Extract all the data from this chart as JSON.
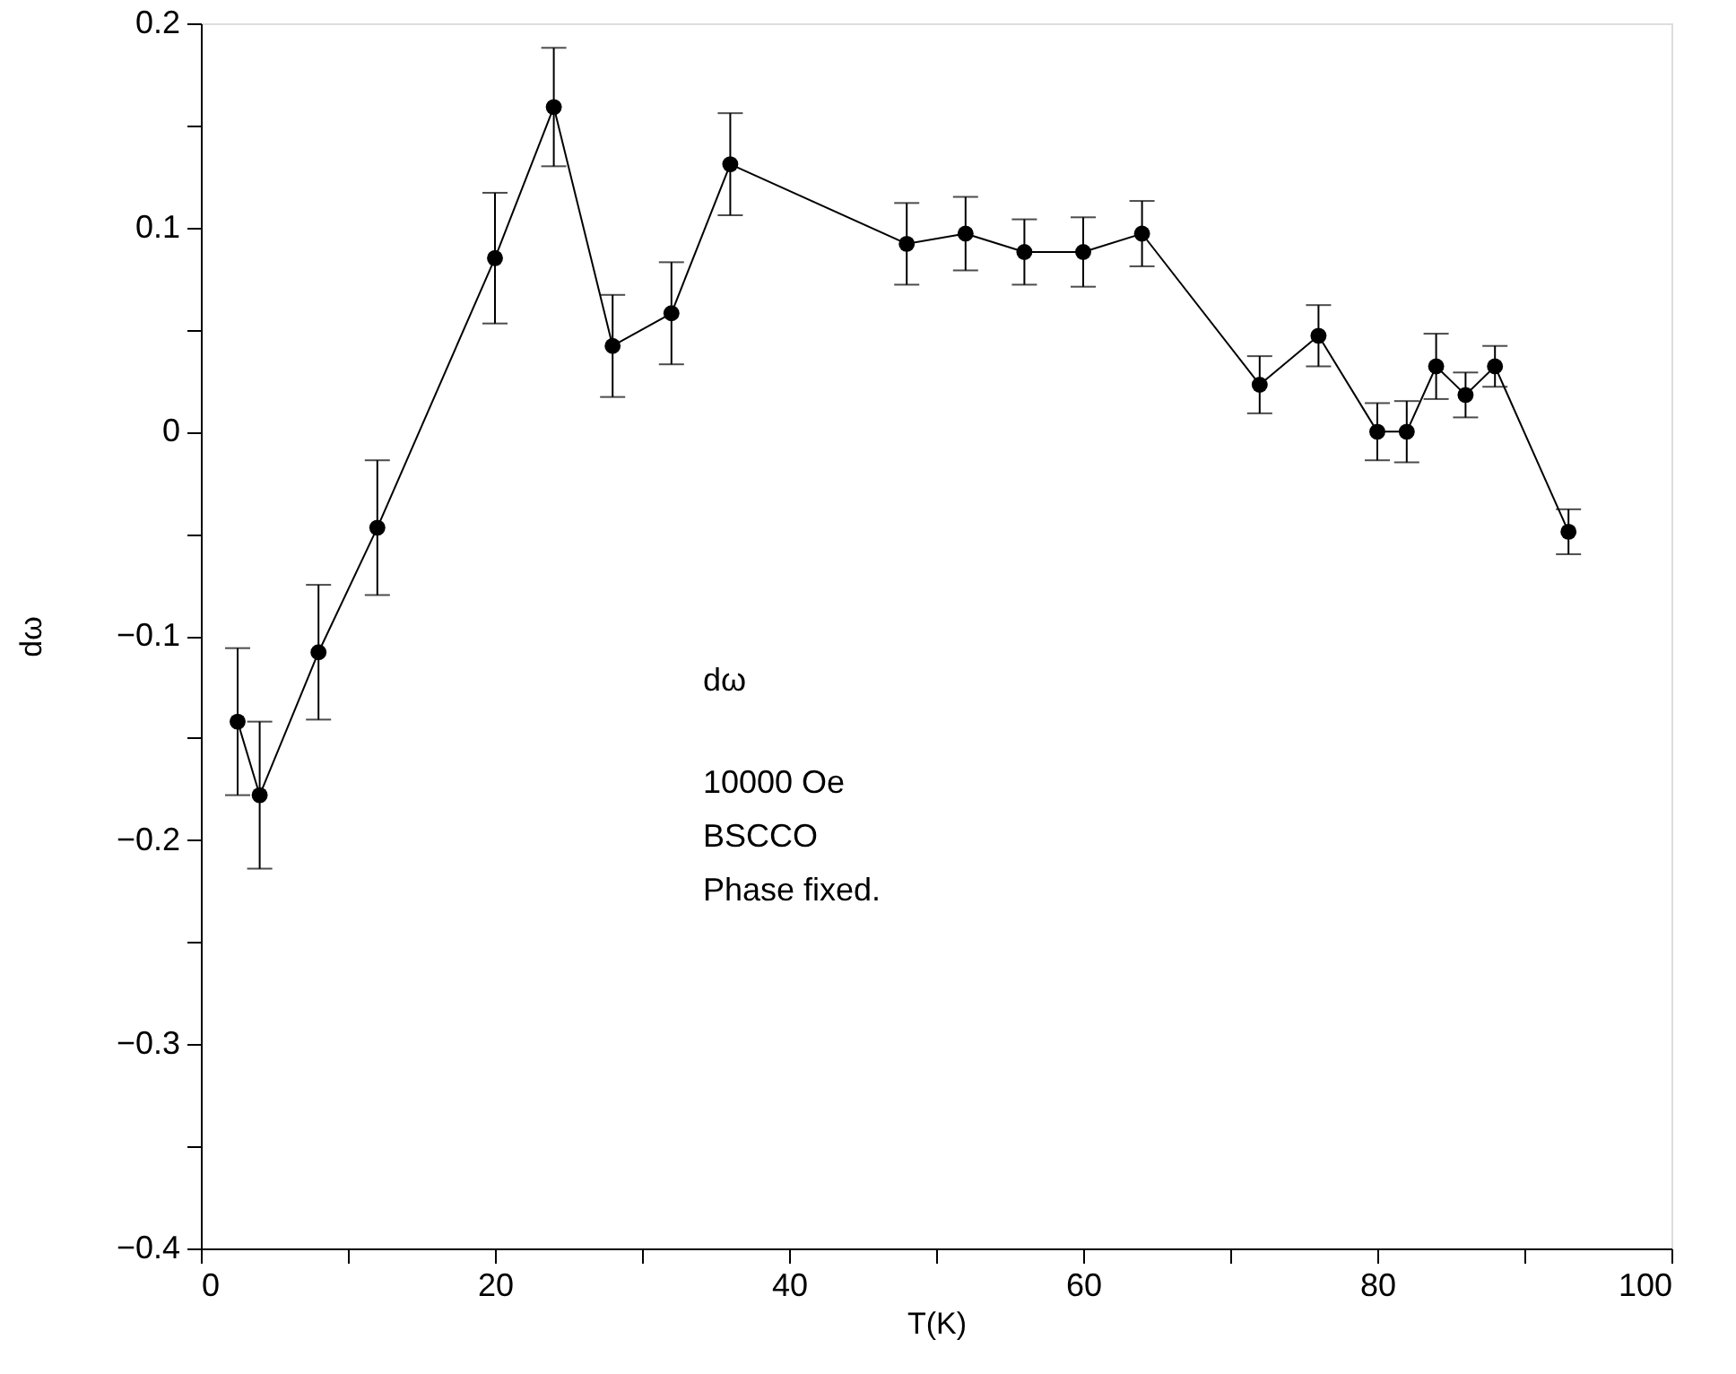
{
  "chart_data": {
    "type": "line",
    "xlabel": "T(K)",
    "ylabel": "dω",
    "x": [
      2.5,
      4,
      8,
      12,
      20,
      24,
      28,
      32,
      36,
      48,
      52,
      56,
      60,
      64,
      72,
      76,
      80,
      82,
      84,
      86,
      88,
      93
    ],
    "series": [
      {
        "color": "#000000",
        "values": [
          -0.142,
          -0.178,
          -0.108,
          -0.047,
          0.085,
          0.159,
          0.042,
          0.058,
          0.131,
          0.092,
          0.097,
          0.088,
          0.088,
          0.097,
          0.023,
          0.047,
          0.0,
          0.0,
          0.032,
          0.018,
          0.032,
          -0.049
        ],
        "errors": [
          0.036,
          0.036,
          0.033,
          0.033,
          0.032,
          0.029,
          0.025,
          0.025,
          0.025,
          0.02,
          0.018,
          0.016,
          0.017,
          0.016,
          0.014,
          0.015,
          0.014,
          0.015,
          0.016,
          0.011,
          0.01,
          0.011
        ]
      }
    ],
    "xlim": [
      0,
      100
    ],
    "ylim": [
      -0.4,
      0.2
    ],
    "xticks": [
      0,
      {
        "value": 10,
        "label": null
      },
      20,
      {
        "value": 30,
        "label": null
      },
      40,
      {
        "value": 50,
        "label": null
      },
      60,
      {
        "value": 70,
        "label": null
      },
      80,
      {
        "value": 90,
        "label": null
      },
      100
    ],
    "yticks": [
      -0.4,
      {
        "value": -0.35,
        "label": null
      },
      -0.3,
      {
        "value": -0.25,
        "label": null
      },
      -0.2,
      {
        "value": -0.15,
        "label": null
      },
      -0.1,
      {
        "value": -0.05,
        "label": null
      },
      0,
      {
        "value": 0.05,
        "label": null
      },
      0.1,
      {
        "value": 0.15,
        "label": null
      },
      0.2
    ],
    "annotations": [
      "dω",
      "10000 Oe",
      "BSCCO",
      "Phase fixed."
    ],
    "grid": false,
    "marker": "circle",
    "line_style": "solid"
  }
}
